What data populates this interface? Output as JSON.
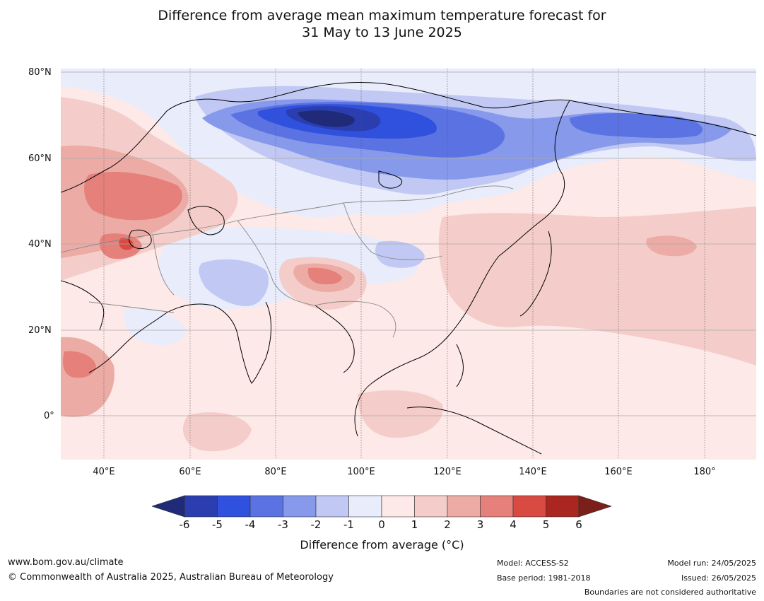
{
  "title": {
    "line1": "Difference from average mean maximum temperature forecast for",
    "line2": "31 May to 13 June 2025"
  },
  "map": {
    "lon_range": [
      30,
      192
    ],
    "lat_range": [
      -10,
      81
    ],
    "lat_labels": [
      {
        "value": 80,
        "label": "80°N"
      },
      {
        "value": 60,
        "label": "60°N"
      },
      {
        "value": 40,
        "label": "40°N"
      },
      {
        "value": 20,
        "label": "20°N"
      },
      {
        "value": 0,
        "label": "0°"
      }
    ],
    "lon_labels": [
      {
        "value": 40,
        "label": "40°E"
      },
      {
        "value": 60,
        "label": "60°E"
      },
      {
        "value": 80,
        "label": "80°E"
      },
      {
        "value": 100,
        "label": "100°E"
      },
      {
        "value": 120,
        "label": "120°E"
      },
      {
        "value": 140,
        "label": "140°E"
      },
      {
        "value": 160,
        "label": "160°E"
      },
      {
        "value": 180,
        "label": "180°"
      }
    ]
  },
  "colorbar": {
    "title": "Difference from average (°C)",
    "ticks": [
      "-6",
      "-5",
      "-4",
      "-3",
      "-2",
      "-1",
      "0",
      "1",
      "2",
      "3",
      "4",
      "5",
      "6"
    ],
    "colors": {
      "below": "#1f2a78",
      "bins": [
        "#2a3eaf",
        "#3050de",
        "#5b72e2",
        "#8799eb",
        "#c0c8f3",
        "#e8ecfb",
        "#fde9e7",
        "#f4cdca",
        "#ecaca5",
        "#e5817a",
        "#d84a42",
        "#a9271f"
      ],
      "above": "#7a1f1a"
    }
  },
  "footer": {
    "website": "www.bom.gov.au/climate",
    "copyright": "© Commonwealth of Australia 2025, Australian Bureau of Meteorology",
    "model": "Model: ACCESS-S2",
    "base_period": "Base period: 1981-2018",
    "model_run": "Model run: 24/05/2025",
    "issued": "Issued: 26/05/2025",
    "disclaimer": "Boundaries are not considered authoritative"
  }
}
